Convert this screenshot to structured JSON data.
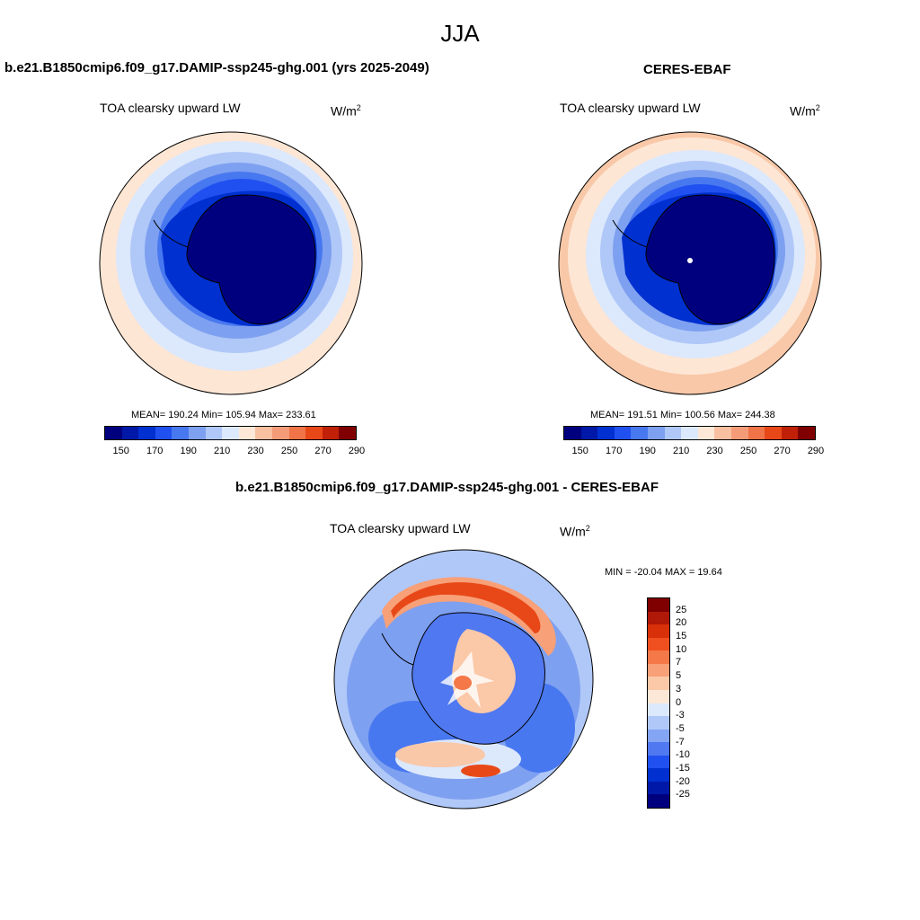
{
  "title": "JJA",
  "left_panel": {
    "header": "b.e21.B1850cmip6.f09_g17.DAMIP-ssp245-ghg.001 (yrs 2025-2049)",
    "variable": "TOA clearsky upward LW",
    "unit_base": "W/m",
    "unit_exp": "2",
    "stats": "MEAN= 190.24  Min= 105.94  Max= 233.61"
  },
  "right_panel": {
    "header": "CERES-EBAF",
    "variable": "TOA clearsky upward LW",
    "unit_base": "W/m",
    "unit_exp": "2",
    "stats": "MEAN= 191.51  Min= 100.56  Max= 244.38"
  },
  "diff_panel": {
    "header": "b.e21.B1850cmip6.f09_g17.DAMIP-ssp245-ghg.001 - CERES-EBAF",
    "variable": "TOA clearsky upward LW",
    "unit_base": "W/m",
    "unit_exp": "2",
    "stats": "MIN = -20.04 MAX =  19.64"
  },
  "colorbar_abs": {
    "colors": [
      "#00007f",
      "#0018a8",
      "#0030d0",
      "#2050f0",
      "#4878f0",
      "#7ea0f0",
      "#b0c8f8",
      "#dce8fc",
      "#fde8d8",
      "#f8c0a0",
      "#f49c78",
      "#f07448",
      "#e84818",
      "#c02008",
      "#800000"
    ],
    "tick_labels": [
      "150",
      "170",
      "190",
      "210",
      "230",
      "250",
      "270",
      "290"
    ]
  },
  "colorbar_diff": {
    "colors": [
      "#800000",
      "#b01808",
      "#d83008",
      "#f05020",
      "#f47848",
      "#f8a078",
      "#fbc8a8",
      "#fde8d8",
      "#dce8fc",
      "#b0c8f8",
      "#84a4f4",
      "#5078f0",
      "#2050f0",
      "#0030d0",
      "#0018a8",
      "#00007f"
    ],
    "tick_labels": [
      "25",
      "20",
      "15",
      "10",
      "7",
      "5",
      "3",
      "0",
      "-3",
      "-5",
      "-7",
      "-10",
      "-15",
      "-20",
      "-25"
    ]
  },
  "map_colors": {
    "ice_core": "#00007f",
    "deep_blue": "#0030d0",
    "mid_blue": "#2a55f0",
    "light_blue": "#7ea0f0",
    "pale_blue": "#c8daf8",
    "pale_peach": "#fde6d4",
    "peach": "#f8c8a8",
    "red": "#e84818",
    "dark_red": "#c02008"
  }
}
